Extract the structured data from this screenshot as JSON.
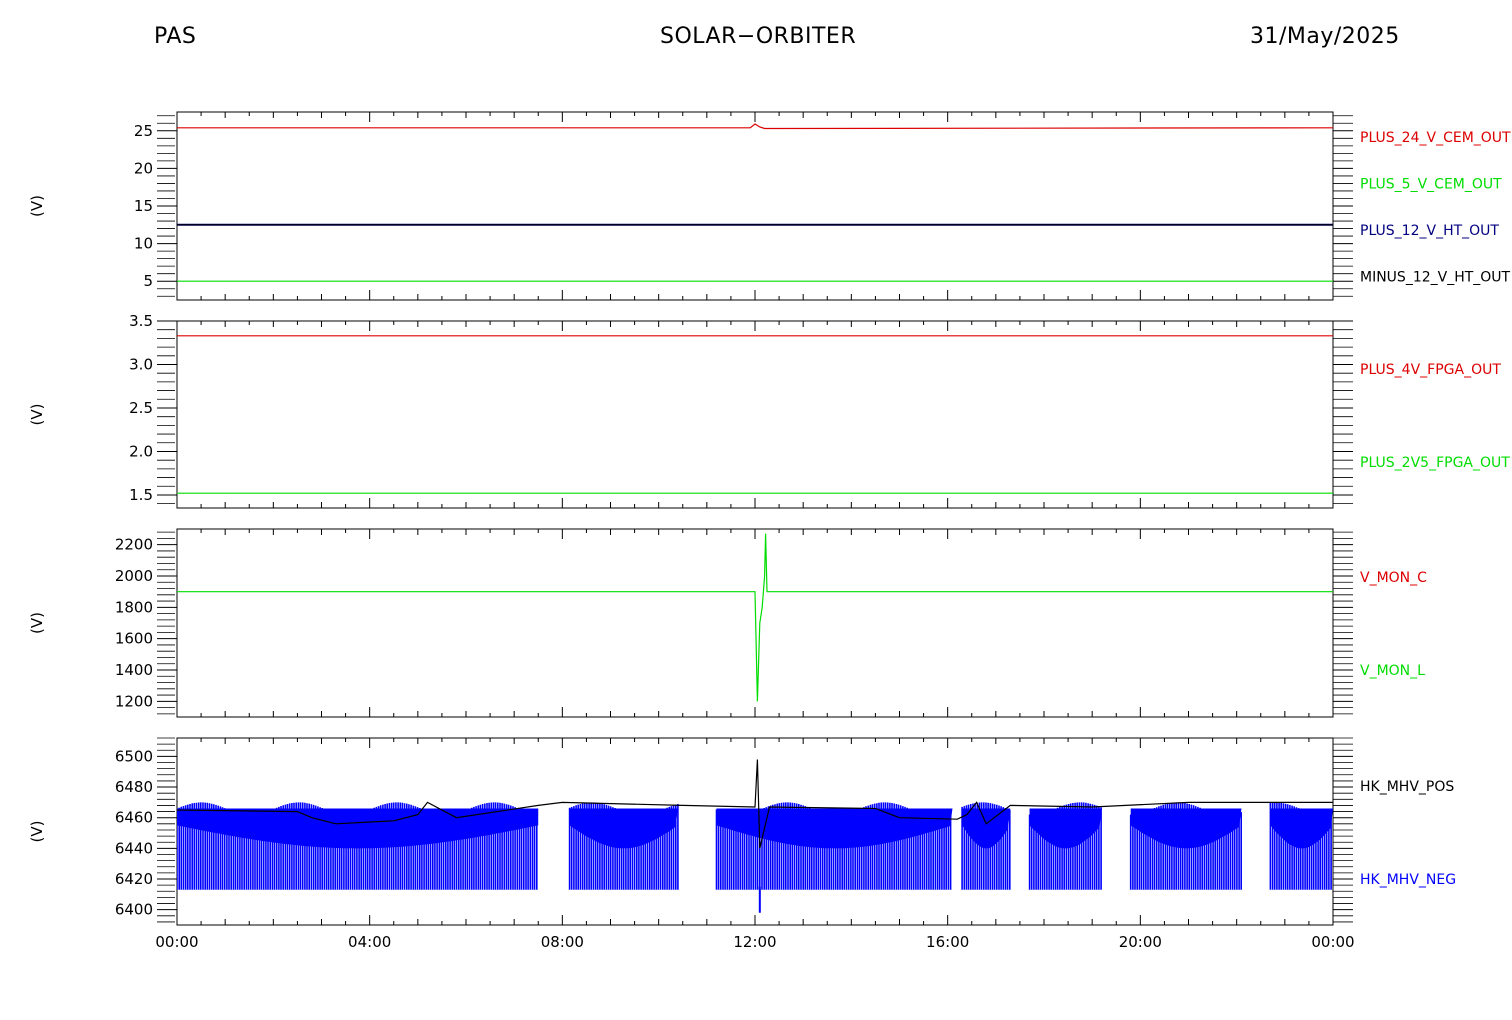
{
  "header": {
    "left": "PAS",
    "center": "SOLAR−ORBITER",
    "right": "31/May/2025"
  },
  "colors": {
    "red": "#dd0000",
    "green": "#00dd00",
    "navy": "#000080",
    "blue": "#0000ff",
    "black": "#000000"
  },
  "chart_data": [
    {
      "type": "line",
      "ylabel": "(V)",
      "ylim": [
        2.5,
        27.5
      ],
      "yticks": [
        5,
        10,
        15,
        20,
        25
      ],
      "series": [
        {
          "name": "PLUS_24_V_CEM_OUT",
          "color": "#dd0000",
          "values": [
            [
              0,
              25.4
            ],
            [
              11.9,
              25.4
            ],
            [
              12.0,
              25.9
            ],
            [
              12.1,
              25.5
            ],
            [
              12.2,
              25.3
            ],
            [
              24,
              25.4
            ]
          ]
        },
        {
          "name": "PLUS_5_V_CEM_OUT",
          "color": "#00dd00",
          "values": [
            [
              0,
              5.0
            ],
            [
              24,
              5.0
            ]
          ]
        },
        {
          "name": "PLUS_12_V_HT_OUT",
          "color": "#000080",
          "values": [
            [
              0,
              12.5
            ],
            [
              24,
              12.5
            ]
          ]
        },
        {
          "name": "MINUS_12_V_HT_OUT",
          "color": "#000000",
          "values": [
            [
              0,
              12.5
            ],
            [
              24,
              12.5
            ]
          ]
        }
      ]
    },
    {
      "type": "line",
      "ylabel": "(V)",
      "ylim": [
        1.35,
        3.5
      ],
      "yticks": [
        1.5,
        2.0,
        2.5,
        3.0,
        3.5
      ],
      "series": [
        {
          "name": "PLUS_4V_FPGA_OUT",
          "color": "#dd0000",
          "values": [
            [
              0,
              3.33
            ],
            [
              24,
              3.33
            ]
          ]
        },
        {
          "name": "PLUS_2V5_FPGA_OUT",
          "color": "#00dd00",
          "values": [
            [
              0,
              1.52
            ],
            [
              24,
              1.52
            ]
          ]
        }
      ]
    },
    {
      "type": "line",
      "ylabel": "(V)",
      "ylim": [
        1100,
        2300
      ],
      "yticks": [
        1200,
        1400,
        1600,
        1800,
        2000,
        2200
      ],
      "series": [
        {
          "name": "V_MON_C",
          "color": "#dd0000",
          "values": []
        },
        {
          "name": "V_MON_L",
          "color": "#00dd00",
          "values": [
            [
              0,
              1900
            ],
            [
              12.0,
              1900
            ],
            [
              12.05,
              1200
            ],
            [
              12.1,
              1700
            ],
            [
              12.15,
              1800
            ],
            [
              12.2,
              2000
            ],
            [
              12.22,
              2270
            ],
            [
              12.25,
              1900
            ],
            [
              24,
              1900
            ]
          ]
        }
      ]
    },
    {
      "type": "line",
      "ylabel": "(V)",
      "ylim": [
        6390,
        6512
      ],
      "yticks": [
        6400,
        6420,
        6440,
        6460,
        6480,
        6500
      ],
      "series": [
        {
          "name": "HK_MHV_POS",
          "color": "#000000",
          "values": [
            [
              0,
              6465
            ],
            [
              2.5,
              6464
            ],
            [
              2.8,
              6460
            ],
            [
              3.3,
              6456
            ],
            [
              4.5,
              6458
            ],
            [
              5.0,
              6462
            ],
            [
              5.2,
              6470
            ],
            [
              5.8,
              6460
            ],
            [
              7.5,
              6468
            ],
            [
              8.0,
              6470
            ],
            [
              10.5,
              6468
            ],
            [
              12.0,
              6467
            ],
            [
              12.05,
              6498
            ],
            [
              12.1,
              6440
            ],
            [
              12.3,
              6467
            ],
            [
              14.5,
              6466
            ],
            [
              15.0,
              6460
            ],
            [
              16.2,
              6459
            ],
            [
              16.4,
              6462
            ],
            [
              16.6,
              6470
            ],
            [
              16.8,
              6456
            ],
            [
              17.3,
              6468
            ],
            [
              19.0,
              6467
            ],
            [
              21.0,
              6470
            ],
            [
              24,
              6470
            ]
          ]
        },
        {
          "name": "HK_MHV_NEG",
          "color": "#0000ff",
          "values": []
        }
      ],
      "blue_band": {
        "low": 6413,
        "segments": [
          [
            0.0,
            7.5
          ],
          [
            8.15,
            10.4
          ],
          [
            11.2,
            16.1
          ],
          [
            16.3,
            17.3
          ],
          [
            17.7,
            19.2
          ],
          [
            19.8,
            22.1
          ],
          [
            22.7,
            24.0
          ]
        ]
      }
    }
  ],
  "x_axis": {
    "ticks": [
      "00:00",
      "04:00",
      "08:00",
      "12:00",
      "16:00",
      "20:00",
      "00:00"
    ],
    "range_hours": [
      0,
      24
    ]
  }
}
